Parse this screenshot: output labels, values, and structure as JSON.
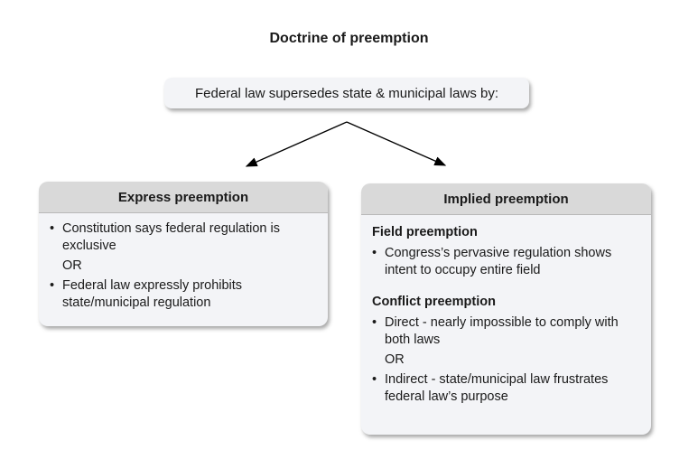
{
  "title": "Doctrine of preemption",
  "top_box": "Federal law supersedes state & municipal laws by:",
  "express": {
    "header": "Express preemption",
    "item1": "Constitution says federal regulation is exclusive",
    "or": "OR",
    "item2": "Federal law expressly prohibits state/municipal regulation"
  },
  "implied": {
    "header": "Implied preemption",
    "field": {
      "title": "Field preemption",
      "item1": "Congress’s pervasive regulation shows intent to occupy entire field"
    },
    "conflict": {
      "title": "Conflict preemption",
      "item1": "Direct - nearly impossible to comply with both laws",
      "or": "OR",
      "item2": "Indirect - state/municipal law frustrates federal law’s purpose"
    }
  }
}
